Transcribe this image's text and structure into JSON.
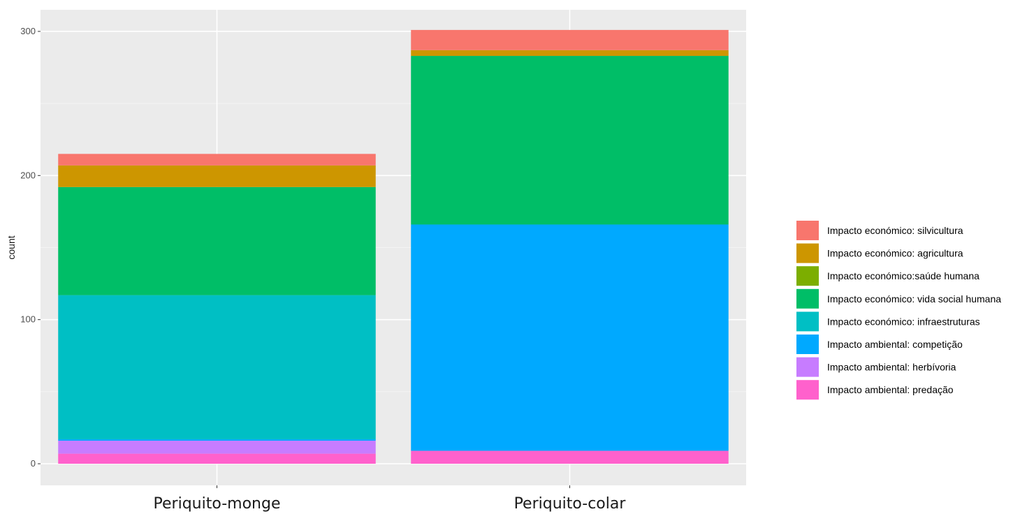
{
  "chart_data": {
    "type": "bar",
    "stacked": true,
    "xlabel": "",
    "ylabel": "count",
    "ylim": [
      -15,
      315
    ],
    "yticks": [
      0,
      100,
      200,
      300
    ],
    "grid": true,
    "legend_position": "right",
    "categories": [
      "Periquito-monge",
      "Periquito-colar"
    ],
    "series": [
      {
        "name": "Impacto ambiental: predação",
        "color": "#FF61CC",
        "values": [
          7,
          9
        ]
      },
      {
        "name": "Impacto ambiental: herbívoria",
        "color": "#C77CFF",
        "values": [
          9,
          0
        ]
      },
      {
        "name": "Impacto ambiental: competição",
        "color": "#00A9FF",
        "values": [
          1,
          157
        ]
      },
      {
        "name": "Impacto económico: infraestruturas",
        "color": "#00BFC4",
        "values": [
          100,
          0
        ]
      },
      {
        "name": "Impacto económico: vida social humana",
        "color": "#00BE67",
        "values": [
          75,
          117
        ]
      },
      {
        "name": "Impacto económico:saúde humana",
        "color": "#7CAE00",
        "values": [
          0,
          0
        ]
      },
      {
        "name": "Impacto económico: agricultura",
        "color": "#CD9600",
        "values": [
          15,
          4
        ]
      },
      {
        "name": "Impacto económico: silvicultura",
        "color": "#F8766D",
        "values": [
          8,
          14
        ]
      }
    ]
  }
}
